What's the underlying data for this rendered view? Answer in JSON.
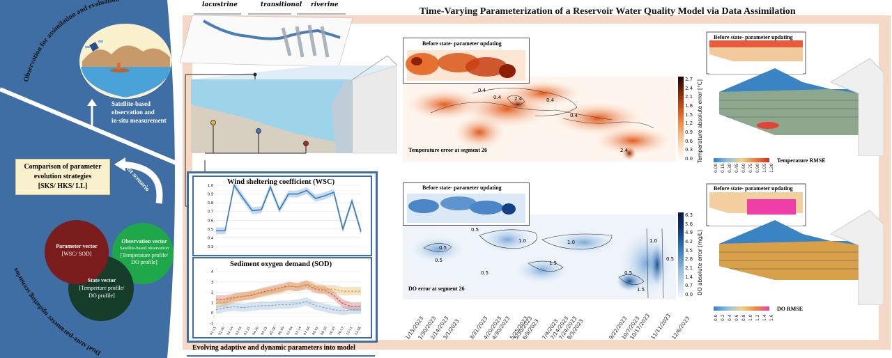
{
  "title": "Time-Varying Parameterization of a Reservoir Water Quality Model via Data Assimilation",
  "colors": {
    "blue": "#3e6ea4",
    "peach": "#f6d8c6",
    "maroon": "#7a1c1c",
    "green": "#1fa84a",
    "dark_green": "#163d2a",
    "cream": "#fbf1cc"
  },
  "left": {
    "top_arc_label": "Observation for assimilation and evaluation",
    "bottom_arc_label": "Dual state-parameter updating scenarios",
    "satellite_text": [
      "Satellite-based",
      "observation and",
      "in-situ measurement"
    ],
    "best_scenario": "Best scenario",
    "comparison": {
      "line1": "Comparison of parameter",
      "line2": "evolution strategies",
      "line3": "[SKS/ HKS/ LL]"
    },
    "parameter_vector": {
      "title": "Parameter vector",
      "body": "[WSC/ SOD]"
    },
    "observation_vector": {
      "title": "Observation vector",
      "sub": "Satellite-based observation",
      "body1": "[Temperature profile/",
      "body2": "DO profile]"
    },
    "state_vector": {
      "title": "State vector",
      "body1": "[Temperture profile/",
      "body2": "DO profile]"
    }
  },
  "zones": {
    "lacustrine": "lacustrine",
    "transitional": "transitional",
    "riverine": "riverine"
  },
  "param_panel": {
    "wsc_title": "Wind sheltering coefficient (WSC)",
    "sod_title": "Sediment oxygen demand (SOD)",
    "footer": "Evolving adaptive and dynamic parameters into model",
    "wsc_yticks": [
      "1.0",
      "0.9",
      "0.8",
      "0.7",
      "0.6",
      "0.5",
      "0.4",
      "0.3"
    ],
    "sod_yticks": [
      "4",
      "3",
      "2",
      "1",
      "0",
      "-1"
    ],
    "xticks": [
      "01-15",
      "01-30",
      "02-14",
      "03-01",
      "03-31",
      "04-30",
      "05-25",
      "05-30",
      "06-09",
      "07-04",
      "07-14",
      "07-24",
      "08-03",
      "09-22",
      "10-07",
      "10-17",
      "11-11",
      "12-06"
    ],
    "wsc_line": [
      0.48,
      0.48,
      1.0,
      0.85,
      0.71,
      0.72,
      0.98,
      0.72,
      0.9,
      0.9,
      0.94,
      0.85,
      0.88,
      0.92,
      0.5,
      0.82,
      0.47
    ],
    "sod_series": [
      {
        "color": "#c94a3a",
        "values": [
          1.3,
          1.3,
          1.5,
          1.6,
          1.7,
          2.0,
          2.2,
          2.4,
          2.6,
          2.5,
          2.7,
          2.3,
          2.2,
          1.7,
          0.9,
          0.6,
          0.6
        ]
      },
      {
        "color": "#d9a23a",
        "values": [
          0.9,
          1.0,
          1.4,
          1.6,
          1.8,
          1.9,
          2.1,
          2.2,
          2.6,
          2.5,
          2.8,
          2.5,
          2.3,
          2.3,
          2.1,
          2.1,
          2.1
        ]
      },
      {
        "color": "#7aa6c9",
        "values": [
          0.3,
          0.5,
          0.6,
          0.5,
          0.6,
          0.7,
          0.7,
          0.8,
          0.8,
          0.9,
          1.1,
          0.7,
          0.5,
          0.3,
          0.2,
          0.3,
          0.3
        ]
      }
    ]
  },
  "temp_panel": {
    "inset_title": "Before state- parameter updating",
    "main_label": "Temperature error at segment 26",
    "cbar_label": "Temperature absolute error [°C]",
    "cbar_ticks": [
      "2.7",
      "2.4",
      "2.1",
      "1.8",
      "1.5",
      "1.2",
      "0.9",
      "0.6",
      "0.3",
      "0.0"
    ],
    "contours": [
      "0.4",
      "0.4",
      "2.4",
      "0.4",
      "2.4",
      "0.4"
    ]
  },
  "do_panel": {
    "inset_title": "Before state- parameter updating",
    "main_label": "DO error at segment 26",
    "cbar_label": "DO absolute error [mg/L]",
    "cbar_ticks": [
      "6.3",
      "5.6",
      "4.9",
      "4.2",
      "3.5",
      "2.8",
      "2.1",
      "1.4",
      "0.7",
      "0.0"
    ],
    "contours": [
      "0.5",
      "0.5",
      "0.5",
      "1.0",
      "1.0",
      "0.5",
      "1.5",
      "0.5",
      "1.0",
      "0.5",
      "1.5",
      "0.5"
    ]
  },
  "dates": [
    "1/15/2023",
    "1/30/2023",
    "2/14/2023",
    "3/1/2023",
    "3/31/2023",
    "4/20/2023",
    "4/30/2023",
    "5/25/2023",
    "5/30/2023",
    "6/9/2023",
    "7/4/2023",
    "7/14/2023",
    "7/24/2023",
    "8/3/2023",
    "9/22/2023",
    "10/7/2023",
    "10/17/2023",
    "11/11/2023",
    "12/6/2023"
  ],
  "rmse_temp": {
    "inset_title": "Before state- parameter updating",
    "label": "Temperature RMSE",
    "ticks": [
      "0.00",
      "0.15",
      "0.30",
      "0.45",
      "0.60",
      "0.75",
      "0.90",
      "1.05",
      "1.20"
    ]
  },
  "rmse_do": {
    "inset_title": "Before state- parameter updating",
    "label": "DO RMSE",
    "ticks": [
      "0.0",
      "0.2",
      "0.4",
      "0.6",
      "0.8",
      "1.0",
      "1.2",
      "1.4",
      "1.6"
    ]
  }
}
